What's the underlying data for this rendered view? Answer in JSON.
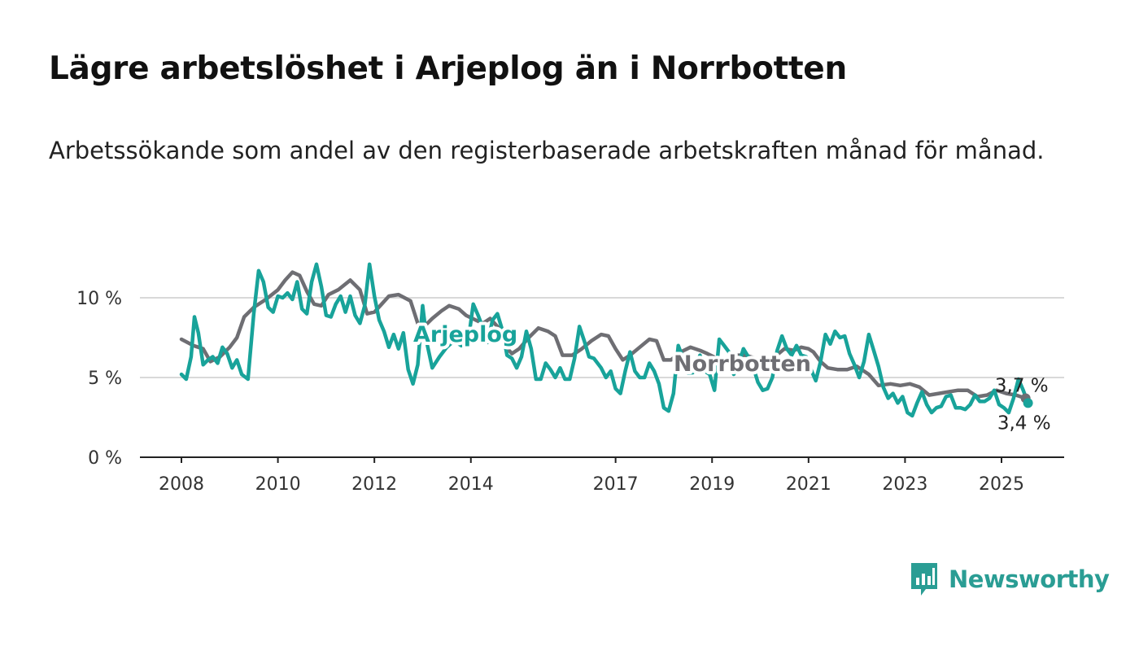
{
  "title": "Lägre arbetslöshet i Arjeplog än i Norrbotten",
  "subtitle": "Arbetssökande som andel av den registerbaserade arbetskraften månad för månad.",
  "brand": {
    "name": "Newsworthy",
    "color": "#2a9d94"
  },
  "chart_data": {
    "type": "line",
    "x_tick_labels": [
      "2008",
      "2010",
      "2012",
      "2014",
      "2017",
      "2019",
      "2021",
      "2023",
      "2025"
    ],
    "x_ticks": [
      2008,
      2010,
      2012,
      2014,
      2017,
      2019,
      2021,
      2023,
      2025
    ],
    "y_tick_labels": [
      "0 %",
      "5 %",
      "10 %"
    ],
    "y_ticks": [
      0,
      5,
      10
    ],
    "ylim": [
      0,
      12.5
    ],
    "xlim": [
      2008,
      2025.6
    ],
    "grid": true,
    "series": [
      {
        "name": "Norrbotten",
        "color": "#6e6e73",
        "end_label": "3,7 %",
        "points": [
          [
            2008.0,
            7.4
          ],
          [
            2008.25,
            7.0
          ],
          [
            2008.45,
            6.8
          ],
          [
            2008.6,
            6.0
          ],
          [
            2008.8,
            6.3
          ],
          [
            2009.0,
            6.9
          ],
          [
            2009.15,
            7.5
          ],
          [
            2009.3,
            8.8
          ],
          [
            2009.5,
            9.4
          ],
          [
            2009.75,
            9.9
          ],
          [
            2010.0,
            10.5
          ],
          [
            2010.15,
            11.1
          ],
          [
            2010.3,
            11.6
          ],
          [
            2010.45,
            11.4
          ],
          [
            2010.6,
            10.4
          ],
          [
            2010.75,
            9.6
          ],
          [
            2010.9,
            9.5
          ],
          [
            2011.05,
            10.2
          ],
          [
            2011.25,
            10.5
          ],
          [
            2011.5,
            11.1
          ],
          [
            2011.7,
            10.5
          ],
          [
            2011.85,
            9.0
          ],
          [
            2012.0,
            9.1
          ],
          [
            2012.15,
            9.6
          ],
          [
            2012.3,
            10.1
          ],
          [
            2012.5,
            10.2
          ],
          [
            2012.75,
            9.8
          ],
          [
            2012.9,
            8.4
          ],
          [
            2013.0,
            8.1
          ],
          [
            2013.2,
            8.7
          ],
          [
            2013.4,
            9.2
          ],
          [
            2013.55,
            9.5
          ],
          [
            2013.75,
            9.3
          ],
          [
            2013.9,
            8.9
          ],
          [
            2014.1,
            8.6
          ],
          [
            2014.25,
            8.4
          ],
          [
            2014.4,
            8.7
          ],
          [
            2014.55,
            8.2
          ],
          [
            2014.7,
            7.0
          ],
          [
            2014.85,
            6.5
          ],
          [
            2015.0,
            6.8
          ],
          [
            2015.2,
            7.5
          ],
          [
            2015.4,
            8.1
          ],
          [
            2015.6,
            7.9
          ],
          [
            2015.75,
            7.6
          ],
          [
            2015.9,
            6.4
          ],
          [
            2016.1,
            6.4
          ],
          [
            2016.3,
            6.8
          ],
          [
            2016.5,
            7.3
          ],
          [
            2016.7,
            7.7
          ],
          [
            2016.85,
            7.6
          ],
          [
            2017.0,
            6.8
          ],
          [
            2017.15,
            6.1
          ],
          [
            2017.3,
            6.4
          ],
          [
            2017.5,
            6.9
          ],
          [
            2017.7,
            7.4
          ],
          [
            2017.85,
            7.3
          ],
          [
            2018.0,
            6.1
          ],
          [
            2018.15,
            6.1
          ],
          [
            2018.35,
            6.6
          ],
          [
            2018.55,
            6.9
          ],
          [
            2018.75,
            6.7
          ],
          [
            2018.9,
            6.5
          ],
          [
            2019.1,
            6.2
          ],
          [
            2019.3,
            6.1
          ],
          [
            2019.5,
            6.4
          ],
          [
            2019.7,
            6.4
          ],
          [
            2019.9,
            6.2
          ],
          [
            2020.1,
            6.0
          ],
          [
            2020.3,
            6.3
          ],
          [
            2020.5,
            6.8
          ],
          [
            2020.7,
            6.7
          ],
          [
            2020.85,
            6.9
          ],
          [
            2021.0,
            6.8
          ],
          [
            2021.1,
            6.6
          ],
          [
            2021.25,
            6.0
          ],
          [
            2021.4,
            5.6
          ],
          [
            2021.6,
            5.5
          ],
          [
            2021.8,
            5.5
          ],
          [
            2022.0,
            5.7
          ],
          [
            2022.25,
            5.2
          ],
          [
            2022.45,
            4.5
          ],
          [
            2022.7,
            4.6
          ],
          [
            2022.9,
            4.5
          ],
          [
            2023.1,
            4.6
          ],
          [
            2023.3,
            4.4
          ],
          [
            2023.5,
            3.9
          ],
          [
            2023.7,
            4.0
          ],
          [
            2023.9,
            4.1
          ],
          [
            2024.1,
            4.2
          ],
          [
            2024.3,
            4.2
          ],
          [
            2024.5,
            3.8
          ],
          [
            2024.7,
            3.9
          ],
          [
            2024.9,
            4.2
          ],
          [
            2025.1,
            4.0
          ],
          [
            2025.3,
            3.9
          ],
          [
            2025.5,
            3.7
          ]
        ]
      },
      {
        "name": "Arjeplog",
        "color": "#18a39a",
        "end_label": "3,4 %",
        "points": [
          [
            2008.0,
            5.2
          ],
          [
            2008.1,
            4.9
          ],
          [
            2008.2,
            6.3
          ],
          [
            2008.27,
            8.8
          ],
          [
            2008.35,
            7.8
          ],
          [
            2008.45,
            5.8
          ],
          [
            2008.55,
            6.1
          ],
          [
            2008.65,
            6.3
          ],
          [
            2008.75,
            5.9
          ],
          [
            2008.85,
            6.9
          ],
          [
            2008.95,
            6.5
          ],
          [
            2009.05,
            5.6
          ],
          [
            2009.15,
            6.1
          ],
          [
            2009.25,
            5.2
          ],
          [
            2009.38,
            4.9
          ],
          [
            2009.5,
            9.0
          ],
          [
            2009.6,
            11.7
          ],
          [
            2009.7,
            11.0
          ],
          [
            2009.8,
            9.4
          ],
          [
            2009.9,
            9.1
          ],
          [
            2010.0,
            10.1
          ],
          [
            2010.1,
            10.0
          ],
          [
            2010.2,
            10.3
          ],
          [
            2010.3,
            9.9
          ],
          [
            2010.4,
            11.0
          ],
          [
            2010.5,
            9.3
          ],
          [
            2010.6,
            9.0
          ],
          [
            2010.7,
            11.0
          ],
          [
            2010.8,
            12.1
          ],
          [
            2010.9,
            10.7
          ],
          [
            2011.0,
            8.9
          ],
          [
            2011.1,
            8.8
          ],
          [
            2011.2,
            9.6
          ],
          [
            2011.3,
            10.1
          ],
          [
            2011.4,
            9.1
          ],
          [
            2011.5,
            10.1
          ],
          [
            2011.6,
            8.9
          ],
          [
            2011.7,
            8.4
          ],
          [
            2011.8,
            9.5
          ],
          [
            2011.9,
            12.1
          ],
          [
            2012.0,
            10.1
          ],
          [
            2012.1,
            8.6
          ],
          [
            2012.2,
            7.9
          ],
          [
            2012.3,
            6.9
          ],
          [
            2012.4,
            7.7
          ],
          [
            2012.5,
            6.8
          ],
          [
            2012.6,
            7.8
          ],
          [
            2012.7,
            5.5
          ],
          [
            2012.8,
            4.6
          ],
          [
            2012.9,
            5.8
          ],
          [
            2013.0,
            9.5
          ],
          [
            2013.1,
            7.0
          ],
          [
            2013.2,
            5.6
          ],
          [
            2013.35,
            6.3
          ],
          [
            2013.5,
            6.9
          ],
          [
            2013.65,
            7.3
          ],
          [
            2013.8,
            7.0
          ],
          [
            2013.95,
            7.4
          ],
          [
            2014.05,
            9.6
          ],
          [
            2014.15,
            8.9
          ],
          [
            2014.25,
            8.1
          ],
          [
            2014.35,
            7.2
          ],
          [
            2014.45,
            8.6
          ],
          [
            2014.55,
            9.0
          ],
          [
            2014.65,
            8.0
          ],
          [
            2014.75,
            6.4
          ],
          [
            2014.85,
            6.2
          ],
          [
            2014.95,
            5.6
          ],
          [
            2015.05,
            6.3
          ],
          [
            2015.15,
            7.9
          ],
          [
            2015.25,
            6.8
          ],
          [
            2015.35,
            4.9
          ],
          [
            2015.45,
            4.9
          ],
          [
            2015.55,
            5.9
          ],
          [
            2015.65,
            5.5
          ],
          [
            2015.75,
            5.0
          ],
          [
            2015.85,
            5.6
          ],
          [
            2015.95,
            4.9
          ],
          [
            2016.05,
            4.9
          ],
          [
            2016.15,
            6.2
          ],
          [
            2016.25,
            8.2
          ],
          [
            2016.35,
            7.3
          ],
          [
            2016.45,
            6.3
          ],
          [
            2016.55,
            6.2
          ],
          [
            2016.7,
            5.6
          ],
          [
            2016.8,
            5.0
          ],
          [
            2016.9,
            5.4
          ],
          [
            2017.0,
            4.3
          ],
          [
            2017.1,
            4.0
          ],
          [
            2017.2,
            5.4
          ],
          [
            2017.3,
            6.6
          ],
          [
            2017.4,
            5.4
          ],
          [
            2017.5,
            5.0
          ],
          [
            2017.6,
            5.0
          ],
          [
            2017.7,
            5.9
          ],
          [
            2017.8,
            5.4
          ],
          [
            2017.9,
            4.6
          ],
          [
            2018.0,
            3.1
          ],
          [
            2018.1,
            2.9
          ],
          [
            2018.2,
            4.0
          ],
          [
            2018.3,
            7.0
          ],
          [
            2018.4,
            6.2
          ],
          [
            2018.5,
            5.3
          ],
          [
            2018.6,
            5.3
          ],
          [
            2018.75,
            6.4
          ],
          [
            2018.85,
            5.4
          ],
          [
            2018.95,
            5.2
          ],
          [
            2019.05,
            4.2
          ],
          [
            2019.15,
            7.4
          ],
          [
            2019.25,
            7.0
          ],
          [
            2019.35,
            6.6
          ],
          [
            2019.45,
            5.2
          ],
          [
            2019.55,
            5.8
          ],
          [
            2019.65,
            6.8
          ],
          [
            2019.75,
            6.3
          ],
          [
            2019.85,
            5.7
          ],
          [
            2019.95,
            4.7
          ],
          [
            2020.05,
            4.2
          ],
          [
            2020.15,
            4.3
          ],
          [
            2020.25,
            5.0
          ],
          [
            2020.35,
            6.7
          ],
          [
            2020.45,
            7.6
          ],
          [
            2020.55,
            6.8
          ],
          [
            2020.65,
            6.4
          ],
          [
            2020.75,
            7.0
          ],
          [
            2020.85,
            6.4
          ],
          [
            2020.95,
            6.3
          ],
          [
            2021.05,
            5.5
          ],
          [
            2021.15,
            4.8
          ],
          [
            2021.25,
            6.0
          ],
          [
            2021.35,
            7.7
          ],
          [
            2021.45,
            7.1
          ],
          [
            2021.55,
            7.9
          ],
          [
            2021.65,
            7.5
          ],
          [
            2021.75,
            7.6
          ],
          [
            2021.85,
            6.5
          ],
          [
            2021.95,
            5.8
          ],
          [
            2022.05,
            5.0
          ],
          [
            2022.15,
            6.0
          ],
          [
            2022.25,
            7.7
          ],
          [
            2022.35,
            6.7
          ],
          [
            2022.45,
            5.7
          ],
          [
            2022.55,
            4.4
          ],
          [
            2022.65,
            3.7
          ],
          [
            2022.75,
            4.0
          ],
          [
            2022.85,
            3.4
          ],
          [
            2022.95,
            3.8
          ],
          [
            2023.05,
            2.8
          ],
          [
            2023.15,
            2.6
          ],
          [
            2023.25,
            3.4
          ],
          [
            2023.35,
            4.1
          ],
          [
            2023.45,
            3.3
          ],
          [
            2023.55,
            2.8
          ],
          [
            2023.65,
            3.1
          ],
          [
            2023.75,
            3.2
          ],
          [
            2023.85,
            3.8
          ],
          [
            2023.95,
            3.9
          ],
          [
            2024.05,
            3.1
          ],
          [
            2024.15,
            3.1
          ],
          [
            2024.25,
            3.0
          ],
          [
            2024.35,
            3.3
          ],
          [
            2024.45,
            3.9
          ],
          [
            2024.55,
            3.5
          ],
          [
            2024.65,
            3.5
          ],
          [
            2024.75,
            3.7
          ],
          [
            2024.85,
            4.2
          ],
          [
            2024.95,
            3.3
          ],
          [
            2025.05,
            3.1
          ],
          [
            2025.15,
            2.8
          ],
          [
            2025.25,
            3.7
          ],
          [
            2025.35,
            4.9
          ],
          [
            2025.45,
            4.2
          ],
          [
            2025.55,
            3.4
          ]
        ]
      }
    ],
    "series_labels": [
      "Arjeplog",
      "Norrbotten"
    ]
  }
}
